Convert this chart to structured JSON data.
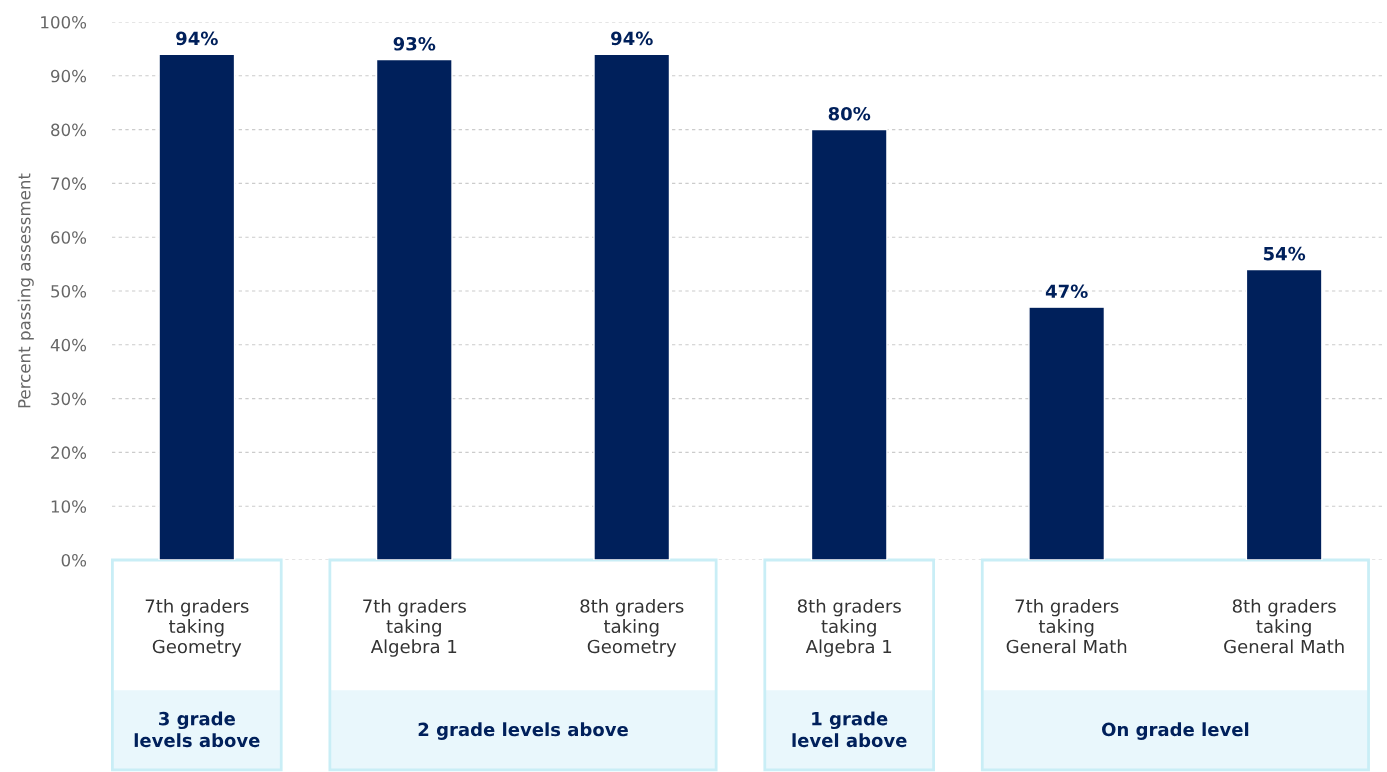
{
  "chart_data": {
    "type": "bar",
    "ylabel": "Percent passing assessment",
    "categories": [
      "7th graders\ntaking\nGeometry",
      "7th graders\ntaking\nAlgebra 1",
      "8th graders\ntaking\nGeometry",
      "8th graders\ntaking\nAlgebra 1",
      "7th graders\ntaking\nGeneral Math",
      "8th graders\ntaking\nGeneral Math"
    ],
    "values": [
      94,
      93,
      94,
      80,
      47,
      54
    ],
    "value_labels": [
      "94%",
      "93%",
      "94%",
      "80%",
      "47%",
      "54%"
    ],
    "color": "#00205b",
    "ylim": [
      0,
      100
    ],
    "yticks": [
      {
        "value": 0,
        "label": "0%"
      },
      {
        "value": 10,
        "label": "10%"
      },
      {
        "value": 20,
        "label": "20%"
      },
      {
        "value": 30,
        "label": "30%"
      },
      {
        "value": 40,
        "label": "40%"
      },
      {
        "value": 50,
        "label": "50%"
      },
      {
        "value": 60,
        "label": "60%"
      },
      {
        "value": 70,
        "label": "70%"
      },
      {
        "value": 80,
        "label": "80%"
      },
      {
        "value": 90,
        "label": "90%"
      },
      {
        "value": 100,
        "label": "100%"
      }
    ],
    "grid": "y",
    "annotations": [
      "3 grade\nlevels above",
      "2 grade levels above",
      "1 grade\nlevel above",
      "On grade level"
    ]
  }
}
